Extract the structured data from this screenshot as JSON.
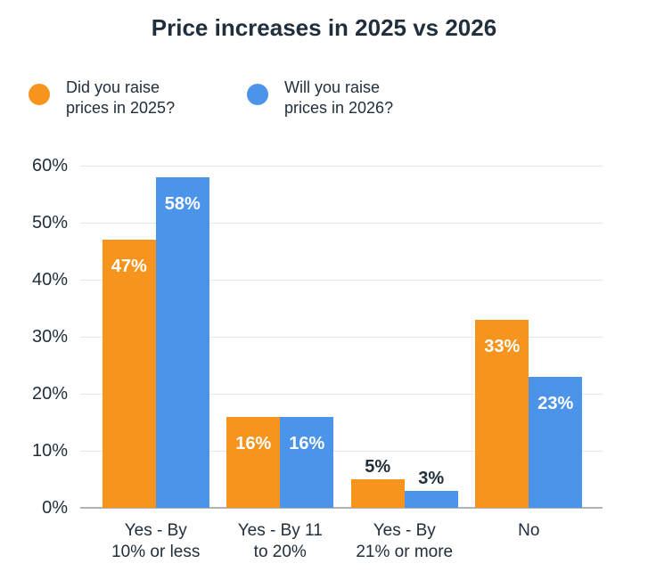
{
  "title": "Price increases in 2025 vs 2026",
  "colors": {
    "orange": "#F7941E",
    "blue": "#4B94EA",
    "text_dark": "#212F3D",
    "gridline": "#E7E7E7",
    "axis_line": "#B3B3B3",
    "label_on_bar": "#FFFFFF",
    "background": "#FFFFFF"
  },
  "legend": [
    {
      "label": "Did you raise\nprices in 2025?",
      "color": "#F7941E",
      "swatch": "circle"
    },
    {
      "label": "Will you raise\nprices in 2026?",
      "color": "#4B94EA",
      "swatch": "circle"
    }
  ],
  "chart_data": {
    "type": "bar",
    "title": "Price increases in 2025 vs 2026",
    "categories": [
      "Yes - By\n10% or less",
      "Yes - By 11\nto 20%",
      "Yes - By\n21% or more",
      "No"
    ],
    "series": [
      {
        "name": "Did you raise prices in 2025?",
        "color": "#F7941E",
        "values": [
          47,
          16,
          5,
          33
        ]
      },
      {
        "name": "Will you raise prices in 2026?",
        "color": "#4B94EA",
        "values": [
          58,
          16,
          3,
          23
        ]
      }
    ],
    "value_labels": [
      "47%",
      "58%",
      "16%",
      "16%",
      "5%",
      "3%",
      "33%",
      "23%"
    ],
    "xlabel": "",
    "ylabel": "",
    "ylim": [
      0,
      60
    ],
    "yticks": [
      0,
      10,
      20,
      30,
      40,
      50,
      60
    ],
    "ytick_format": "{v}%",
    "grid": true,
    "legend_position": "top-left"
  }
}
